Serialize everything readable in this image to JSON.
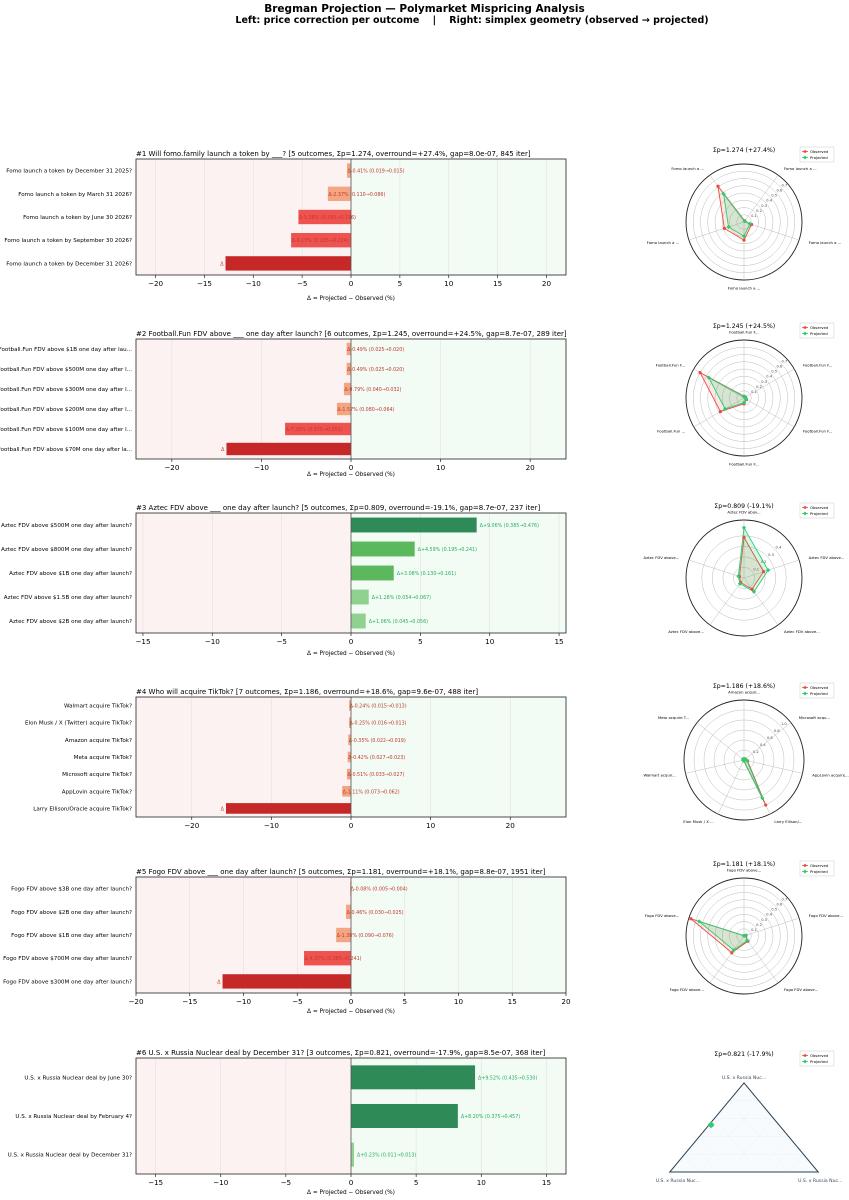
{
  "figure": {
    "title": "Bregman Projection — Polymarket Mispricing Analysis",
    "subtitle": "Left: price correction per outcome    |    Right: simplex geometry (observed → projected)"
  },
  "legend": {
    "observed": "Observed",
    "projected": "Projected"
  },
  "colors": {
    "observed": "#e74c3c",
    "projected": "#2ecc71",
    "neg_strong": "#c62828",
    "neg_mid": "#ef5350",
    "neg_light": "#f4a582",
    "pos_strong": "#2e8b57",
    "pos_mid": "#5cb85c",
    "pos_light": "#8fd18f",
    "neg_bg": "#fdf2f2",
    "pos_bg": "#f2fbf4"
  },
  "chart_data": [
    {
      "type": "bar",
      "title": "#1  Will fomo.family launch a token by ___?   [5 outcomes, Σp=1.274, overround=+27.4%, gap=8.0e-07, 845 iter]",
      "xlabel": "Δ = Projected − Observed (%)",
      "xlim": [
        -22,
        22
      ],
      "xticks": [
        -20,
        -15,
        -10,
        -5,
        0,
        5,
        10,
        15,
        20
      ],
      "categories": [
        "Fomo launch a token by December 31 2025?",
        "Fomo launch a token by March 31 2026?",
        "Fomo launch a token by June 30 2026?",
        "Fomo launch a token by September 30 2026?",
        "Fomo launch a token by December 31 2026?"
      ],
      "values": [
        -0.41,
        -2.37,
        -5.38,
        -6.13,
        -12.84
      ],
      "labels": [
        "Δ-0.41%  (0.019→0.015)",
        "Δ-2.37%  (0.110→0.086)",
        "Δ-5.38%  (0.250→0.196)",
        "Δ-6.13%  (0.285→0.224)",
        "Δ"
      ],
      "radar": {
        "title": "Σp=1.274 (+27.4%)",
        "kind": "radar",
        "rmax": 0.8,
        "rticks": [
          0.1,
          0.2,
          0.3,
          0.4,
          0.5,
          0.6,
          0.7
        ],
        "axis_labels": [
          "Fomo launch a ...",
          "Fomo launch a ...",
          "Fomo launch a ...",
          "Fomo launch a ...",
          "Fomo launch a ..."
        ],
        "observed": [
          0.019,
          0.11,
          0.25,
          0.285,
          0.61
        ],
        "projected": [
          0.015,
          0.086,
          0.196,
          0.224,
          0.48
        ]
      }
    },
    {
      "type": "bar",
      "title": "#2  Football.Fun FDV above ___ one day after launch?   [6 outcomes, Σp=1.245, overround=+24.5%, gap=8.7e-07, 289 iter]",
      "xlabel": "Δ = Projected − Observed (%)",
      "xlim": [
        -24,
        24
      ],
      "xticks": [
        -20,
        -10,
        0,
        10,
        20
      ],
      "categories": [
        "Football.Fun FDV above $1B one day after lau...",
        "Football.Fun FDV above $500M one day after l...",
        "Football.Fun FDV above $300M one day after l...",
        "Football.Fun FDV above $200M one day after l...",
        "Football.Fun FDV above $100M one day after l...",
        "Football.Fun FDV above $70M one day after la..."
      ],
      "values": [
        -0.49,
        -0.49,
        -0.79,
        -1.57,
        -7.36,
        -13.9
      ],
      "labels": [
        "Δ-0.49%  (0.025→0.020)",
        "Δ-0.49%  (0.025→0.020)",
        "Δ-0.79%  (0.040→0.032)",
        "Δ-1.57%  (0.080→0.064)",
        "Δ-7.36%  (0.375→0.301)",
        "Δ"
      ],
      "radar": {
        "title": "Σp=1.245 (+24.5%)",
        "kind": "radar",
        "rmax": 0.8,
        "rticks": [
          0.1,
          0.2,
          0.3,
          0.4,
          0.5,
          0.6,
          0.7
        ],
        "axis_labels": [
          "Football.Fun F...",
          "Football.Fun F...",
          "Football.Fun F...",
          "Football.Fun F...",
          "Football.Fun ...",
          "Football.Fun F..."
        ],
        "observed": [
          0.025,
          0.025,
          0.04,
          0.08,
          0.375,
          0.7
        ],
        "projected": [
          0.02,
          0.02,
          0.032,
          0.064,
          0.301,
          0.561
        ]
      }
    },
    {
      "type": "bar",
      "title": "#3  Aztec FDV above ___ one day after launch?   [5 outcomes, Σp=0.809, overround=-19.1%, gap=8.7e-07, 237 iter]",
      "xlabel": "Δ = Projected − Observed (%)",
      "xlim": [
        -15.5,
        15.5
      ],
      "xticks": [
        -15,
        -10,
        -5,
        0,
        5,
        10,
        15
      ],
      "categories": [
        "Aztec FDV above $500M one day after launch?",
        "Aztec FDV above $800M one day after launch?",
        "Aztec FDV above $1B one day after launch?",
        "Aztec FDV above $1.5B one day after launch?",
        "Aztec FDV above $2B one day after launch?"
      ],
      "values": [
        9.06,
        4.59,
        3.08,
        1.28,
        1.06
      ],
      "labels": [
        "Δ+9.06%  (0.385→0.476)",
        "Δ+4.59%  (0.195→0.241)",
        "Δ+3.08%  (0.130→0.161)",
        "Δ+1.28%  (0.054→0.067)",
        "Δ+1.06%  (0.045→0.056)"
      ],
      "radar": {
        "title": "Σp=0.809 (-19.1%)",
        "kind": "radar",
        "rmax": 0.55,
        "rticks": [
          0.1,
          0.2,
          0.3,
          0.4
        ],
        "axis_labels": [
          "Aztec FDV abov...",
          "Aztec FDV above...",
          "Aztec FDV above...",
          "Aztec FDV above...",
          "Aztec FDV above..."
        ],
        "observed": [
          0.385,
          0.195,
          0.13,
          0.054,
          0.045
        ],
        "projected": [
          0.476,
          0.241,
          0.161,
          0.067,
          0.056
        ]
      }
    },
    {
      "type": "bar",
      "title": "#4  Who will acquire TikTok?   [7 outcomes, Σp=1.186, overround=+18.6%, gap=9.6e-07, 488 iter]",
      "xlabel": "",
      "xlim": [
        -27,
        27
      ],
      "xticks": [
        -20,
        -10,
        0,
        10,
        20
      ],
      "categories": [
        "Walmart acquire TikTok?",
        "Elon Musk / X (Twitter) acquire TikTok?",
        "Amazon acquire TikTok?",
        "Meta acquire TikTok?",
        "Microsoft acquire TikTok?",
        "AppLovin acquire TikTok?",
        "Larry Ellison/Oracle acquire TikTok?"
      ],
      "values": [
        -0.24,
        -0.25,
        -0.35,
        -0.42,
        -0.51,
        -1.11,
        -15.7
      ],
      "labels": [
        "Δ-0.24%  (0.015→0.013)",
        "Δ-0.25%  (0.016→0.013)",
        "Δ-0.35%  (0.022→0.019)",
        "Δ-0.42%  (0.027→0.023)",
        "Δ-0.51%  (0.033→0.027)",
        "Δ-1.11%  (0.073→0.062)",
        "Δ"
      ],
      "radar": {
        "title": "Σp=1.186 (+18.6%)",
        "kind": "radar",
        "rmax": 1.2,
        "rticks": [
          0.2,
          0.4,
          0.6,
          0.8,
          1.0
        ],
        "axis_labels": [
          "Amazon acquir...",
          "Microsoft acqu...",
          "AppLovin acquire...",
          "Larry Ellison/...",
          "Elon Musk / X ...",
          "Walmart acquir...",
          "Meta acquire T..."
        ],
        "observed": [
          0.022,
          0.033,
          0.073,
          1.0,
          0.016,
          0.015,
          0.027
        ],
        "projected": [
          0.019,
          0.027,
          0.062,
          0.843,
          0.013,
          0.013,
          0.023
        ]
      }
    },
    {
      "type": "bar",
      "title": "#5  Fogo FDV above ___ one day after launch?   [5 outcomes, Σp=1.181, overround=+18.1%, gap=8.8e-07, 1951 iter]",
      "xlabel": "Δ = Projected − Observed (%)",
      "xlim": [
        -20,
        20
      ],
      "xticks": [
        -20,
        -15,
        -10,
        -5,
        0,
        5,
        10,
        15,
        20
      ],
      "categories": [
        "Fogo FDV above $3B one day after launch?",
        "Fogo FDV above $2B one day after launch?",
        "Fogo FDV above $1B one day after launch?",
        "Fogo FDV above $700M one day after launch?",
        "Fogo FDV above $300M one day after launch?"
      ],
      "values": [
        -0.08,
        -0.46,
        -1.38,
        -4.37,
        -11.95
      ],
      "labels": [
        "Δ-0.08%  (0.005→0.004)",
        "Δ-0.46%  (0.030→0.025)",
        "Δ-1.38%  (0.090→0.076)",
        "Δ-4.37%  (0.285→0.241)",
        "Δ"
      ],
      "radar": {
        "title": "Σp=1.181 (+18.1%)",
        "kind": "radar",
        "rmax": 0.8,
        "rticks": [
          0.1,
          0.2,
          0.3,
          0.4,
          0.5,
          0.6,
          0.7
        ],
        "axis_labels": [
          "Fogo FDV above...",
          "Fogo FDV above...",
          "Fogo FDV above...",
          "Fogo FDV above...",
          "Fogo FDV above..."
        ],
        "observed": [
          0.005,
          0.03,
          0.09,
          0.285,
          0.77
        ],
        "projected": [
          0.004,
          0.025,
          0.076,
          0.241,
          0.651
        ]
      }
    },
    {
      "type": "bar",
      "title": "#6  U.S. x Russia Nuclear deal by December 31?   [3 outcomes, Σp=0.821, overround=-17.9%, gap=8.5e-07, 368 iter]",
      "xlabel": "Δ = Projected − Observed (%)",
      "xlim": [
        -16.5,
        16.5
      ],
      "xticks": [
        -15,
        -10,
        -5,
        0,
        5,
        10,
        15
      ],
      "categories": [
        "U.S. x Russia Nuclear deal by June 30?",
        "U.S. x Russia Nuclear deal by February 4?",
        "U.S. x Russia Nuclear deal by December 31?"
      ],
      "values": [
        9.52,
        8.2,
        0.23
      ],
      "labels": [
        "Δ+9.52%  (0.435→0.530)",
        "Δ+8.20%  (0.375→0.457)",
        "Δ+0.23%  (0.011→0.013)"
      ],
      "radar": {
        "title": "Σp=0.821 (-17.9%)",
        "kind": "simplex",
        "axis_labels": [
          "U.S. x Russia Nuc...",
          "U.S. x Russia Nuc...",
          "U.S. x Russia Nuc..."
        ],
        "observed": [
          0.435,
          0.375,
          0.011
        ],
        "projected": [
          0.53,
          0.457,
          0.013
        ]
      }
    }
  ]
}
